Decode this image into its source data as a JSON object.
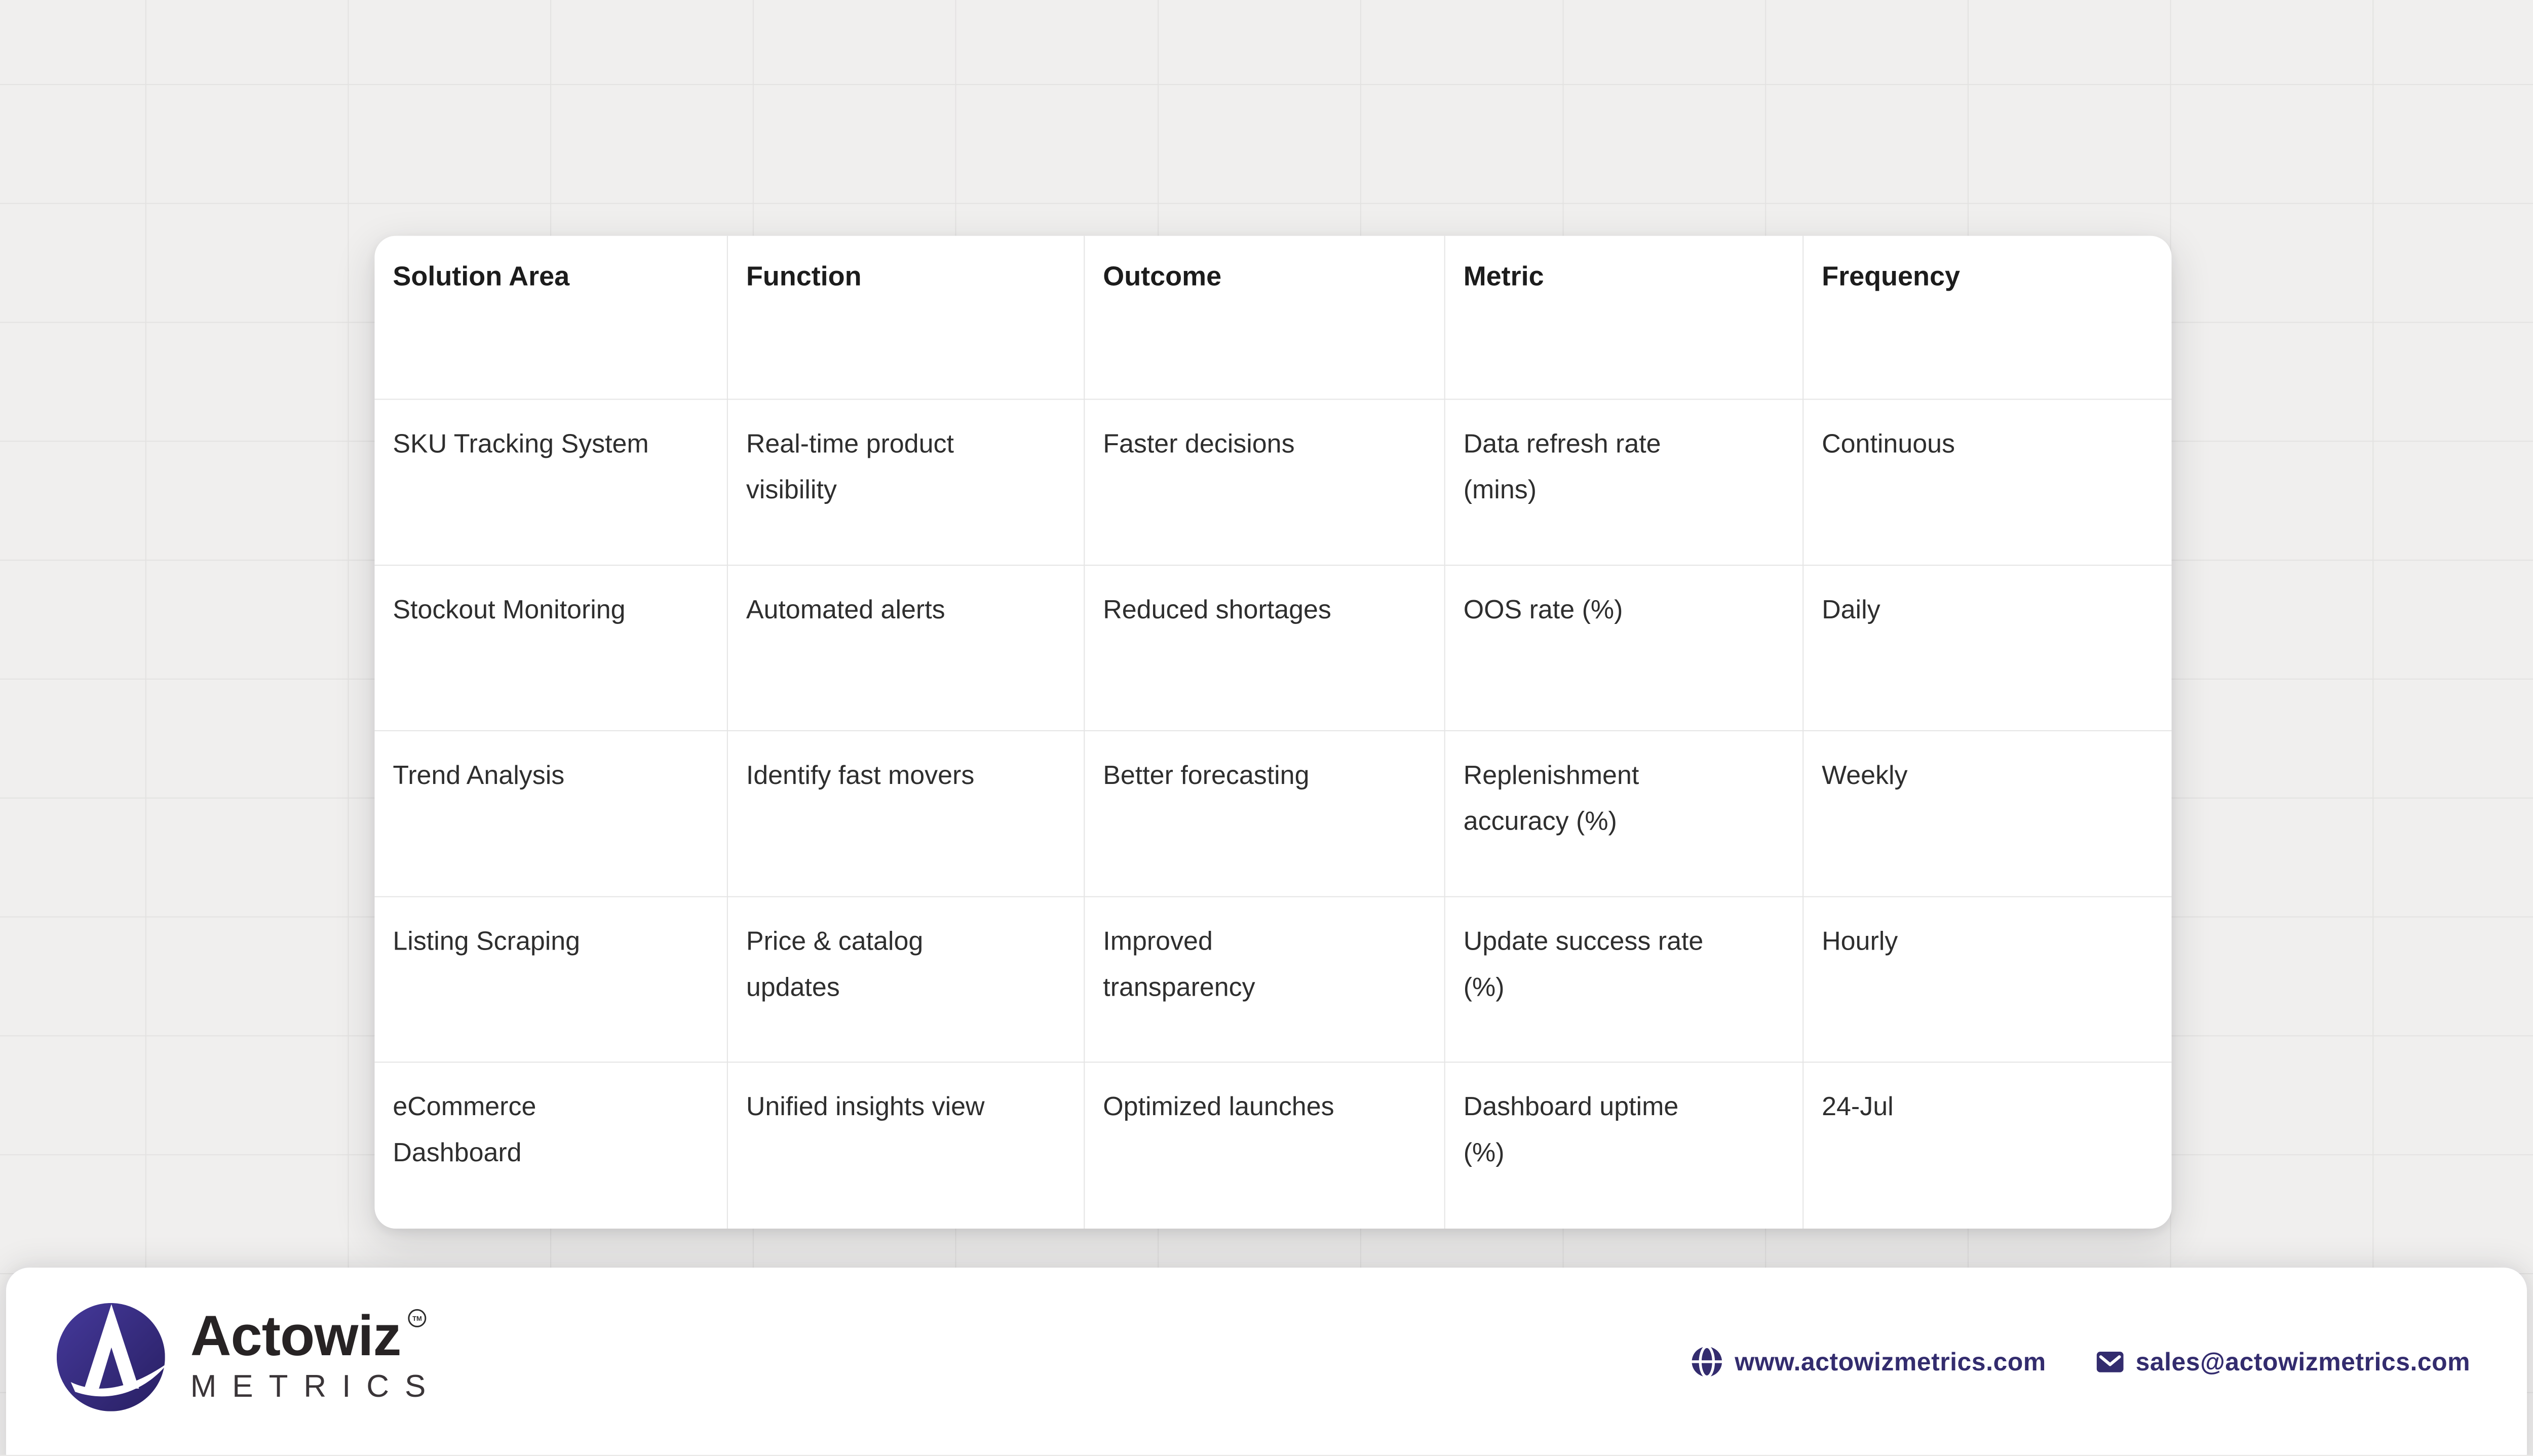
{
  "chart_data": {
    "type": "table",
    "columns": [
      "Solution Area",
      "Function",
      "Outcome",
      "Metric",
      "Frequency"
    ],
    "rows": [
      [
        "SKU Tracking System",
        "Real-time product\nvisibility",
        "Faster decisions",
        "Data refresh rate\n(mins)",
        "Continuous"
      ],
      [
        "Stockout Monitoring",
        "Automated alerts",
        "Reduced shortages",
        "OOS rate (%)",
        "Daily"
      ],
      [
        "Trend Analysis",
        "Identify fast movers",
        "Better forecasting",
        "Replenishment\naccuracy (%)",
        "Weekly"
      ],
      [
        "Listing Scraping",
        "Price & catalog\nupdates",
        "Improved\ntransparency",
        "Update success rate\n(%)",
        "Hourly"
      ],
      [
        "eCommerce\nDashboard",
        "Unified insights view",
        "Optimized launches",
        "Dashboard uptime\n(%)",
        "24-Jul"
      ]
    ],
    "layout_hints": {
      "grid": "on",
      "card": "white rounded card on light gray grid background"
    }
  },
  "footer": {
    "brand": {
      "name": "Actowiz",
      "trademark": "TM",
      "subtitle": "METRICS",
      "logo": "actowiz-a-globe-logo"
    },
    "website": {
      "icon": "globe-icon",
      "label": "www.actowizmetrics.com"
    },
    "email": {
      "icon": "mail-icon",
      "label": "sales@actowizmetrics.com"
    }
  },
  "colors": {
    "accent_indigo": "#332c6e",
    "logo_gradient_start": "#45399b",
    "logo_gradient_end": "#281f62",
    "page_background": "#f0efee",
    "grid_line": "#e3e2e1",
    "card_background": "#ffffff",
    "cell_border": "#e4e4e4",
    "header_text": "#1c1c1c",
    "body_text": "#2e2e2e"
  }
}
